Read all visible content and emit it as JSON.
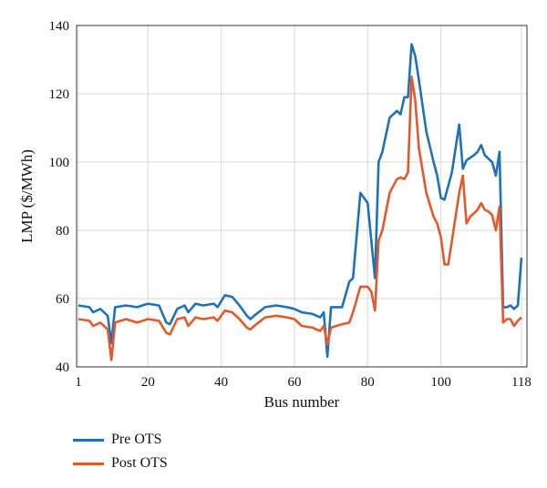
{
  "chart_data": {
    "type": "line",
    "xlabel": "Bus number",
    "ylabel": "LMP ($/MWh)",
    "xlim": [
      1,
      118
    ],
    "ylim": [
      40,
      140
    ],
    "xticks": [
      1,
      20,
      40,
      60,
      80,
      100,
      118
    ],
    "yticks": [
      40,
      60,
      80,
      100,
      120,
      140
    ],
    "grid": true,
    "legend_position": "below",
    "series": [
      {
        "name": "Pre OTS",
        "color": "#1f72b8",
        "points": [
          [
            1,
            58
          ],
          [
            4,
            57.5
          ],
          [
            5,
            56
          ],
          [
            7,
            57
          ],
          [
            9,
            55
          ],
          [
            10,
            47
          ],
          [
            11,
            57.5
          ],
          [
            14,
            58
          ],
          [
            17,
            57.5
          ],
          [
            20,
            58.5
          ],
          [
            23,
            58
          ],
          [
            25,
            53
          ],
          [
            26,
            52.5
          ],
          [
            28,
            57
          ],
          [
            30,
            58
          ],
          [
            31,
            56
          ],
          [
            33,
            58.5
          ],
          [
            35,
            58
          ],
          [
            38,
            58.5
          ],
          [
            39,
            57.5
          ],
          [
            41,
            61
          ],
          [
            43,
            60.5
          ],
          [
            45,
            58
          ],
          [
            47,
            55
          ],
          [
            48,
            54
          ],
          [
            49,
            55
          ],
          [
            52,
            57.5
          ],
          [
            55,
            58
          ],
          [
            58,
            57.5
          ],
          [
            60,
            57
          ],
          [
            62,
            56
          ],
          [
            65,
            55.5
          ],
          [
            67,
            54.5
          ],
          [
            68,
            56
          ],
          [
            69,
            43
          ],
          [
            70,
            57.5
          ],
          [
            73,
            57.5
          ],
          [
            75,
            65
          ],
          [
            76,
            66
          ],
          [
            78,
            91
          ],
          [
            80,
            88
          ],
          [
            81,
            77
          ],
          [
            82,
            66
          ],
          [
            83,
            100
          ],
          [
            84,
            103
          ],
          [
            86,
            113
          ],
          [
            88,
            115
          ],
          [
            89,
            114
          ],
          [
            90,
            119
          ],
          [
            91,
            119
          ],
          [
            92,
            134.5
          ],
          [
            93,
            131
          ],
          [
            94,
            124
          ],
          [
            96,
            109
          ],
          [
            98,
            100
          ],
          [
            99,
            96
          ],
          [
            100,
            89.5
          ],
          [
            101,
            89
          ],
          [
            103,
            97
          ],
          [
            104,
            104
          ],
          [
            105,
            111
          ],
          [
            106,
            98
          ],
          [
            107,
            100.5
          ],
          [
            109,
            102
          ],
          [
            110,
            103
          ],
          [
            111,
            105
          ],
          [
            112,
            102
          ],
          [
            113,
            101
          ],
          [
            114,
            100
          ],
          [
            115,
            96
          ],
          [
            116,
            103
          ],
          [
            117,
            57.5
          ],
          [
            118,
            57.5
          ],
          [
            119,
            58
          ],
          [
            120,
            57
          ],
          [
            121,
            58
          ],
          [
            122,
            72
          ]
        ]
      },
      {
        "name": "Post OTS",
        "color": "#e2592b",
        "points": [
          [
            1,
            54
          ],
          [
            4,
            53.5
          ],
          [
            5,
            52
          ],
          [
            7,
            53
          ],
          [
            9,
            51
          ],
          [
            10,
            42
          ],
          [
            11,
            53
          ],
          [
            14,
            54
          ],
          [
            17,
            53
          ],
          [
            20,
            54
          ],
          [
            23,
            53.5
          ],
          [
            25,
            50
          ],
          [
            26,
            49.5
          ],
          [
            28,
            54
          ],
          [
            30,
            54.5
          ],
          [
            31,
            52
          ],
          [
            33,
            54.5
          ],
          [
            35,
            54
          ],
          [
            38,
            54.5
          ],
          [
            39,
            53.5
          ],
          [
            41,
            56.5
          ],
          [
            43,
            56
          ],
          [
            45,
            54
          ],
          [
            47,
            51.5
          ],
          [
            48,
            51
          ],
          [
            49,
            52
          ],
          [
            52,
            54.5
          ],
          [
            55,
            55
          ],
          [
            58,
            54.5
          ],
          [
            60,
            54
          ],
          [
            62,
            52
          ],
          [
            65,
            51.5
          ],
          [
            67,
            50.5
          ],
          [
            68,
            52
          ],
          [
            69,
            46.5
          ],
          [
            70,
            51.5
          ],
          [
            73,
            52.5
          ],
          [
            75,
            53
          ],
          [
            76,
            56
          ],
          [
            78,
            63.5
          ],
          [
            80,
            63.5
          ],
          [
            81,
            62
          ],
          [
            82,
            56.5
          ],
          [
            83,
            77
          ],
          [
            84,
            80
          ],
          [
            86,
            91
          ],
          [
            88,
            95
          ],
          [
            89,
            95.5
          ],
          [
            90,
            95
          ],
          [
            91,
            97
          ],
          [
            92,
            125
          ],
          [
            93,
            118
          ],
          [
            94,
            104
          ],
          [
            96,
            91
          ],
          [
            98,
            84
          ],
          [
            99,
            82
          ],
          [
            100,
            78
          ],
          [
            101,
            70
          ],
          [
            102,
            70
          ],
          [
            103,
            77
          ],
          [
            104,
            84
          ],
          [
            105,
            91
          ],
          [
            106,
            96
          ],
          [
            107,
            82
          ],
          [
            108,
            84
          ],
          [
            109,
            85
          ],
          [
            110,
            86
          ],
          [
            111,
            88
          ],
          [
            112,
            86
          ],
          [
            113,
            85.5
          ],
          [
            114,
            84.5
          ],
          [
            115,
            80
          ],
          [
            116,
            87
          ],
          [
            117,
            53
          ],
          [
            118,
            54
          ],
          [
            119,
            54
          ],
          [
            120,
            52
          ],
          [
            121,
            53.5
          ],
          [
            122,
            54.5
          ]
        ]
      }
    ]
  }
}
